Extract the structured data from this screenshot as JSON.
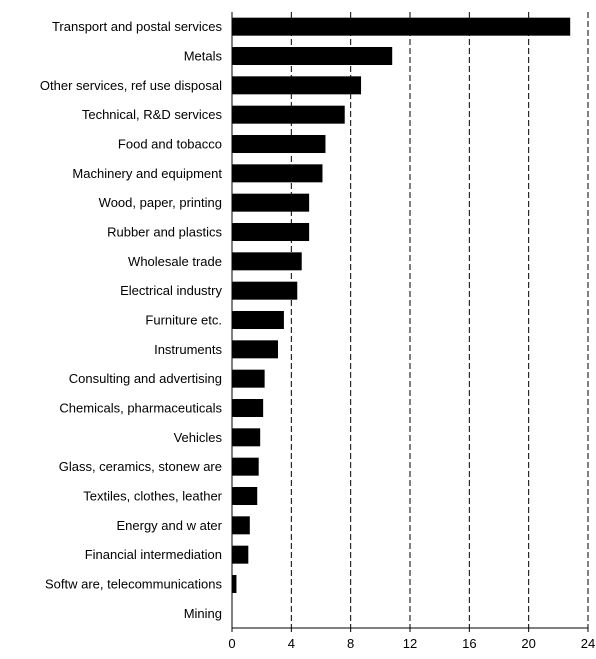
{
  "chart_data": {
    "type": "bar",
    "orientation": "horizontal",
    "categories": [
      "Transport and postal services",
      "Metals",
      "Other services, ref use disposal",
      "Technical, R&D services",
      "Food and tobacco",
      "Machinery and equipment",
      "Wood, paper, printing",
      "Rubber and plastics",
      "Wholesale trade",
      "Electrical industry",
      "Furniture etc.",
      "Instruments",
      "Consulting and advertising",
      "Chemicals, pharmaceuticals",
      "Vehicles",
      "Glass, ceramics, stonew are",
      "Textiles, clothes, leather",
      "Energy and w ater",
      "Financial intermediation",
      "Softw are,  telecommunications",
      "Mining"
    ],
    "values": [
      22.8,
      10.8,
      8.7,
      7.6,
      6.3,
      6.1,
      5.2,
      5.2,
      4.7,
      4.4,
      3.5,
      3.1,
      2.2,
      2.1,
      1.9,
      1.8,
      1.7,
      1.2,
      1.1,
      0.3,
      0.0
    ],
    "xlim": [
      0,
      24
    ],
    "xticks": [
      0,
      4,
      8,
      12,
      16,
      20,
      24
    ],
    "xtick_labels": [
      "0",
      "4",
      "8",
      "12",
      "16",
      "20",
      "24"
    ],
    "grid": "vertical dashed",
    "bar_color": "#000000",
    "title": "",
    "xlabel": "",
    "ylabel": ""
  }
}
